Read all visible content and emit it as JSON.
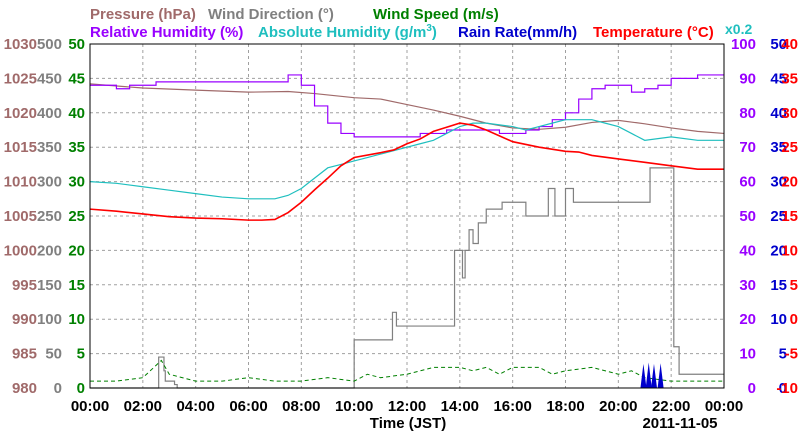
{
  "chart_data": {
    "type": "line",
    "date_label": "2011-11-05",
    "xlabel": "Time (JST)",
    "x_ticks": [
      "00:00",
      "02:00",
      "04:00",
      "06:00",
      "08:00",
      "10:00",
      "12:00",
      "14:00",
      "16:00",
      "18:00",
      "20:00",
      "22:00",
      "00:00"
    ],
    "x_range_hours": [
      0,
      24
    ],
    "legend": [
      {
        "label": "Pressure (hPa)",
        "color": "#a06a6a",
        "row": 1
      },
      {
        "label": "Wind Direction (°)",
        "color": "#808080",
        "row": 1
      },
      {
        "label": "Wind Speed (m/s)",
        "color": "#008000",
        "row": 1
      },
      {
        "label": "Relative Humidity (%)",
        "color": "#9900ff",
        "row": 2
      },
      {
        "label": "Absolute Humidity (g/m",
        "sup": "3",
        "tail": ")",
        "color": "#1fbfbf",
        "row": 2
      },
      {
        "label": "Rain Rate(mm/h)",
        "color": "#0000cc",
        "row": 2
      },
      {
        "label": "Temperature (°C)",
        "color": "#ff0000",
        "row": 2
      }
    ],
    "x0_2_label": "x0.2",
    "axes": {
      "pressure": {
        "ticks": [
          1030,
          1025,
          1020,
          1015,
          1010,
          1005,
          1000,
          995,
          990,
          985,
          980
        ],
        "range": [
          980,
          1030
        ],
        "color": "#a06a6a"
      },
      "wind_dir": {
        "ticks": [
          500,
          450,
          400,
          350,
          300,
          250,
          200,
          150,
          100,
          50,
          0
        ],
        "range": [
          0,
          500
        ],
        "color": "#808080"
      },
      "wind_speed": {
        "ticks": [
          50,
          45,
          40,
          35,
          30,
          25,
          20,
          15,
          10,
          5,
          0
        ],
        "range": [
          0,
          50
        ],
        "color": "#008000"
      },
      "rh": {
        "ticks": [
          100,
          90,
          80,
          70,
          60,
          50,
          40,
          30,
          20,
          10,
          0
        ],
        "range": [
          0,
          100
        ],
        "color": "#9900ff"
      },
      "rain": {
        "ticks": [
          50,
          45,
          40,
          35,
          30,
          25,
          20,
          15,
          10,
          5,
          0
        ],
        "range": [
          0,
          50
        ],
        "color": "#0000cc"
      },
      "temp": {
        "ticks": [
          40,
          35,
          30,
          25,
          20,
          15,
          10,
          5,
          0,
          -5,
          -10
        ],
        "range": [
          -10,
          40
        ],
        "color": "#ff0000"
      }
    },
    "series": [
      {
        "name": "Pressure (hPa)",
        "axis": "pressure",
        "color": "#a06a6a",
        "x": [
          0,
          2,
          4,
          6,
          7.5,
          8.5,
          10,
          11,
          12,
          13,
          14,
          15,
          16,
          17,
          18,
          19,
          20,
          21,
          22,
          23,
          24
        ],
        "y": [
          1024.2,
          1023.6,
          1023.3,
          1023,
          1023.1,
          1022.8,
          1022.2,
          1022,
          1021.2,
          1020.4,
          1019.5,
          1018.5,
          1017.8,
          1017.6,
          1017.9,
          1018.6,
          1018.9,
          1018.4,
          1017.8,
          1017.3,
          1017
        ]
      },
      {
        "name": "Wind Direction (°)",
        "axis": "wind_dir",
        "color": "#808080",
        "step": true,
        "x": [
          0,
          2.5,
          2.6,
          2.8,
          2.85,
          3.2,
          3.3,
          9.9,
          10.0,
          11.35,
          11.45,
          11.6,
          12,
          13.5,
          13.8,
          14.1,
          14.2,
          14.35,
          14.5,
          14.7,
          15.0,
          15.3,
          15.6,
          16.2,
          16.5,
          17.2,
          17.35,
          17.6,
          17.7,
          18,
          18.3,
          19.5,
          20,
          20.6,
          21.2,
          21.4,
          21.9,
          22.05,
          22.1,
          22.3,
          24
        ],
        "y": [
          0,
          0,
          45,
          25,
          10,
          5,
          0,
          0,
          70,
          70,
          110,
          90,
          90,
          90,
          200,
          160,
          200,
          230,
          210,
          240,
          260,
          260,
          270,
          270,
          250,
          250,
          290,
          250,
          250,
          290,
          270,
          270,
          270,
          270,
          320,
          320,
          320,
          320,
          60,
          20,
          20
        ]
      },
      {
        "name": "Wind Speed (m/s)",
        "axis": "wind_speed",
        "color": "#008000",
        "dashed": true,
        "x": [
          0,
          1,
          2,
          2.7,
          3,
          4,
          5,
          6,
          7,
          8,
          9,
          10,
          10.5,
          11,
          12,
          13,
          14,
          14.5,
          15,
          15.5,
          16,
          17,
          17.5,
          18,
          19,
          20,
          20.5,
          21,
          22,
          23,
          24
        ],
        "y": [
          1,
          1,
          1.5,
          4,
          2,
          1,
          1,
          1.5,
          1,
          1,
          1.5,
          1,
          2,
          1.5,
          2,
          3,
          3,
          2.5,
          3,
          2,
          3,
          3,
          2,
          2.5,
          3,
          2,
          2.5,
          1.5,
          1,
          1,
          1
        ]
      },
      {
        "name": "Relative Humidity (%)",
        "axis": "rh",
        "color": "#9900ff",
        "step": true,
        "x": [
          0,
          1,
          1.5,
          2,
          2.5,
          3,
          4,
          5,
          6,
          7,
          7.5,
          8,
          8.5,
          9,
          9.5,
          10,
          10.5,
          11,
          12,
          12.5,
          13,
          13.5,
          14,
          14.5,
          15,
          15.5,
          16,
          16.5,
          17,
          17.5,
          18,
          18.5,
          19,
          19.5,
          20,
          20.5,
          21,
          21.5,
          22,
          22.5,
          23,
          24
        ],
        "y": [
          88,
          87,
          88,
          88,
          89,
          89,
          89,
          89,
          89,
          89,
          91,
          88,
          82,
          77,
          74,
          73,
          73,
          73,
          73,
          74,
          74,
          75,
          75,
          75,
          75,
          74,
          74,
          75,
          76,
          78,
          80,
          84,
          87,
          88,
          88,
          86,
          87,
          88,
          90,
          90,
          91,
          91
        ]
      },
      {
        "name": "Absolute Humidity (g/m³)",
        "axis": "rh",
        "color": "#1fbfbf",
        "x": [
          0,
          1,
          2,
          3,
          4,
          5,
          6,
          7,
          7.5,
          8,
          8.5,
          9,
          9.5,
          10,
          10.5,
          11,
          12,
          12.5,
          13,
          13.5,
          14,
          14.5,
          15,
          16,
          16.5,
          17,
          17.5,
          18,
          18.5,
          19,
          19.5,
          20,
          20.5,
          21,
          22,
          23,
          24
        ],
        "y": [
          60,
          59.5,
          58.5,
          57.5,
          56.5,
          55.5,
          55,
          55,
          56,
          58,
          61,
          64,
          65,
          66,
          67,
          68,
          70,
          71,
          72,
          74,
          76,
          77,
          77,
          76,
          75,
          76,
          77,
          78,
          78,
          78,
          77,
          76,
          74,
          72,
          73,
          72,
          72
        ]
      },
      {
        "name": "Rain Rate(mm/h)",
        "axis": "rain",
        "color": "#0000cc",
        "spikes": true,
        "x": [
          20.95,
          21.15,
          21.35,
          21.6
        ],
        "y": [
          3.5,
          3.7,
          3.5,
          3.6
        ]
      },
      {
        "name": "Temperature (°C)",
        "axis": "temp",
        "color": "#ff0000",
        "x": [
          0,
          1,
          2,
          3,
          4,
          5,
          6,
          6.5,
          7,
          7.5,
          8,
          8.5,
          9,
          9.5,
          10,
          11,
          11.5,
          12,
          12.5,
          13,
          13.5,
          14,
          14.5,
          15,
          16,
          17,
          18,
          18.5,
          19,
          20,
          21,
          22,
          23,
          24
        ],
        "y": [
          16,
          15.7,
          15.3,
          14.9,
          14.7,
          14.6,
          14.4,
          14.4,
          14.5,
          15.5,
          17,
          18.8,
          20.5,
          22.3,
          23.5,
          24.2,
          24.6,
          25.5,
          26.2,
          27.3,
          27.9,
          28.5,
          28.2,
          27.5,
          25.8,
          25,
          24.4,
          24.3,
          23.8,
          23.3,
          22.8,
          22.3,
          21.8,
          21.8
        ]
      }
    ]
  }
}
